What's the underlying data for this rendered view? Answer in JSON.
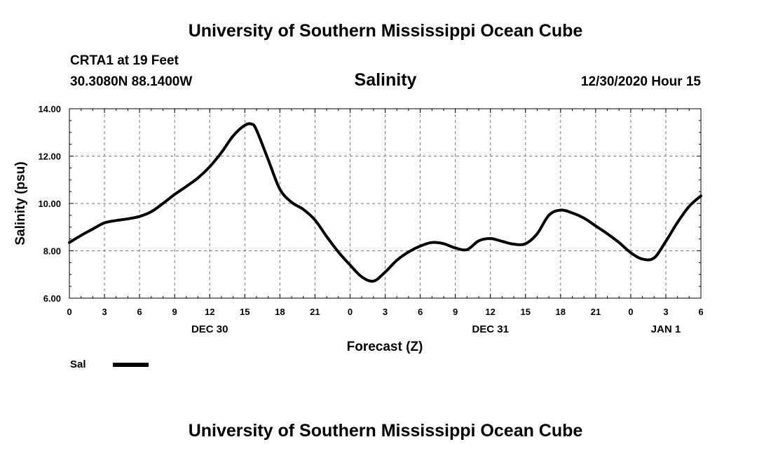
{
  "header": {
    "top_title": "University of Southern Mississippi Ocean Cube",
    "station_name": "CRTA1 at 19 Feet",
    "station_coords": "30.3080N 88.1400W",
    "chart_title": "Salinity",
    "run_time": "12/30/2020 Hour 15",
    "bottom_title": "University of Southern Mississippi Ocean Cube"
  },
  "colors": {
    "line": "#000000",
    "grid": "#777777",
    "axis": "#000000"
  },
  "chart_data": {
    "type": "line",
    "title": "Salinity",
    "xlabel": "Forecast (Z)",
    "ylabel": "Salinity (psu)",
    "xlim": [
      0,
      54
    ],
    "ylim": [
      6,
      14
    ],
    "grid": true,
    "yticks": [
      {
        "value": 6,
        "label": "6.00"
      },
      {
        "value": 8,
        "label": "8.00"
      },
      {
        "value": 10,
        "label": "10.00"
      },
      {
        "value": 12,
        "label": "12.00"
      },
      {
        "value": 14,
        "label": "14.00"
      }
    ],
    "xticks": [
      {
        "value": 0,
        "label": "0"
      },
      {
        "value": 3,
        "label": "3"
      },
      {
        "value": 6,
        "label": "6"
      },
      {
        "value": 9,
        "label": "9"
      },
      {
        "value": 12,
        "label": "12"
      },
      {
        "value": 15,
        "label": "15"
      },
      {
        "value": 18,
        "label": "18"
      },
      {
        "value": 21,
        "label": "21"
      },
      {
        "value": 24,
        "label": "0"
      },
      {
        "value": 27,
        "label": "3"
      },
      {
        "value": 30,
        "label": "6"
      },
      {
        "value": 33,
        "label": "9"
      },
      {
        "value": 36,
        "label": "12"
      },
      {
        "value": 39,
        "label": "15"
      },
      {
        "value": 42,
        "label": "18"
      },
      {
        "value": 45,
        "label": "21"
      },
      {
        "value": 48,
        "label": "0"
      },
      {
        "value": 51,
        "label": "3"
      },
      {
        "value": 54,
        "label": "6"
      }
    ],
    "day_labels": [
      {
        "value": 12,
        "label": "DEC 30"
      },
      {
        "value": 36,
        "label": "DEC 31"
      },
      {
        "value": 51,
        "label": "JAN 1"
      }
    ],
    "legend": {
      "position": "bottom-left",
      "label": "Sal"
    },
    "series": [
      {
        "name": "Sal",
        "x": [
          0,
          1,
          2,
          3,
          4,
          5,
          6,
          7,
          8,
          9,
          10,
          11,
          12,
          13,
          14,
          15,
          15.6,
          16,
          17,
          18,
          19,
          20,
          21,
          22,
          23,
          24,
          25,
          26,
          27,
          28,
          29,
          30,
          31,
          32,
          33,
          34,
          35,
          36,
          37,
          38,
          39,
          40,
          41,
          42,
          43,
          44,
          45,
          46,
          47,
          48,
          49,
          50,
          51,
          52,
          53,
          54
        ],
        "values": [
          8.35,
          8.65,
          8.92,
          9.18,
          9.28,
          9.35,
          9.45,
          9.65,
          10.0,
          10.38,
          10.72,
          11.08,
          11.55,
          12.15,
          12.85,
          13.3,
          13.35,
          13.1,
          11.85,
          10.6,
          10.05,
          9.75,
          9.3,
          8.6,
          7.95,
          7.4,
          6.9,
          6.72,
          7.1,
          7.6,
          7.95,
          8.2,
          8.35,
          8.3,
          8.12,
          8.05,
          8.42,
          8.52,
          8.4,
          8.28,
          8.3,
          8.72,
          9.5,
          9.72,
          9.6,
          9.38,
          9.05,
          8.72,
          8.35,
          7.92,
          7.65,
          7.7,
          8.4,
          9.2,
          9.88,
          10.32
        ]
      }
    ]
  }
}
